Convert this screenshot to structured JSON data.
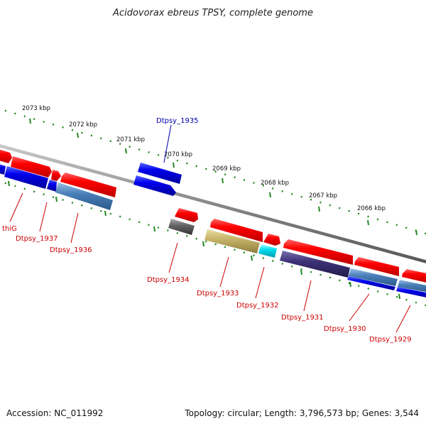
{
  "title": "Acidovorax ebreus TPSY, complete genome",
  "footer": {
    "accession": "Accession: NC_011992",
    "summary": "Topology: circular; Length: 3,796,573 bp; Genes: 3,544"
  },
  "colors": {
    "backbone": "#888888",
    "forward": "#ff0000",
    "reverse_blue": "#0000ee",
    "steel": "#4a7fb8",
    "gray_gene": "#666666",
    "olive_gene": "#c7b46a",
    "cyan_gene": "#00ddee",
    "purple_gene": "#3d3277",
    "tick": "#228822",
    "red_label": "#cc0000",
    "blue_label": "#0000aa"
  },
  "kbp_labels": [
    "2073 kbp",
    "2072 kbp",
    "2071 kbp",
    "2070 kbp",
    "2069 kbp",
    "2068 kbp",
    "2067 kbp",
    "2066 kbp"
  ],
  "gene_labels_below": [
    "thiG",
    "Dtpsy_1937",
    "Dtpsy_1936",
    "Dtpsy_1934",
    "Dtpsy_1933",
    "Dtpsy_1932",
    "Dtpsy_1931",
    "Dtpsy_1930",
    "Dtpsy_1929"
  ],
  "gene_labels_above": [
    "Dtpsy_1935"
  ]
}
